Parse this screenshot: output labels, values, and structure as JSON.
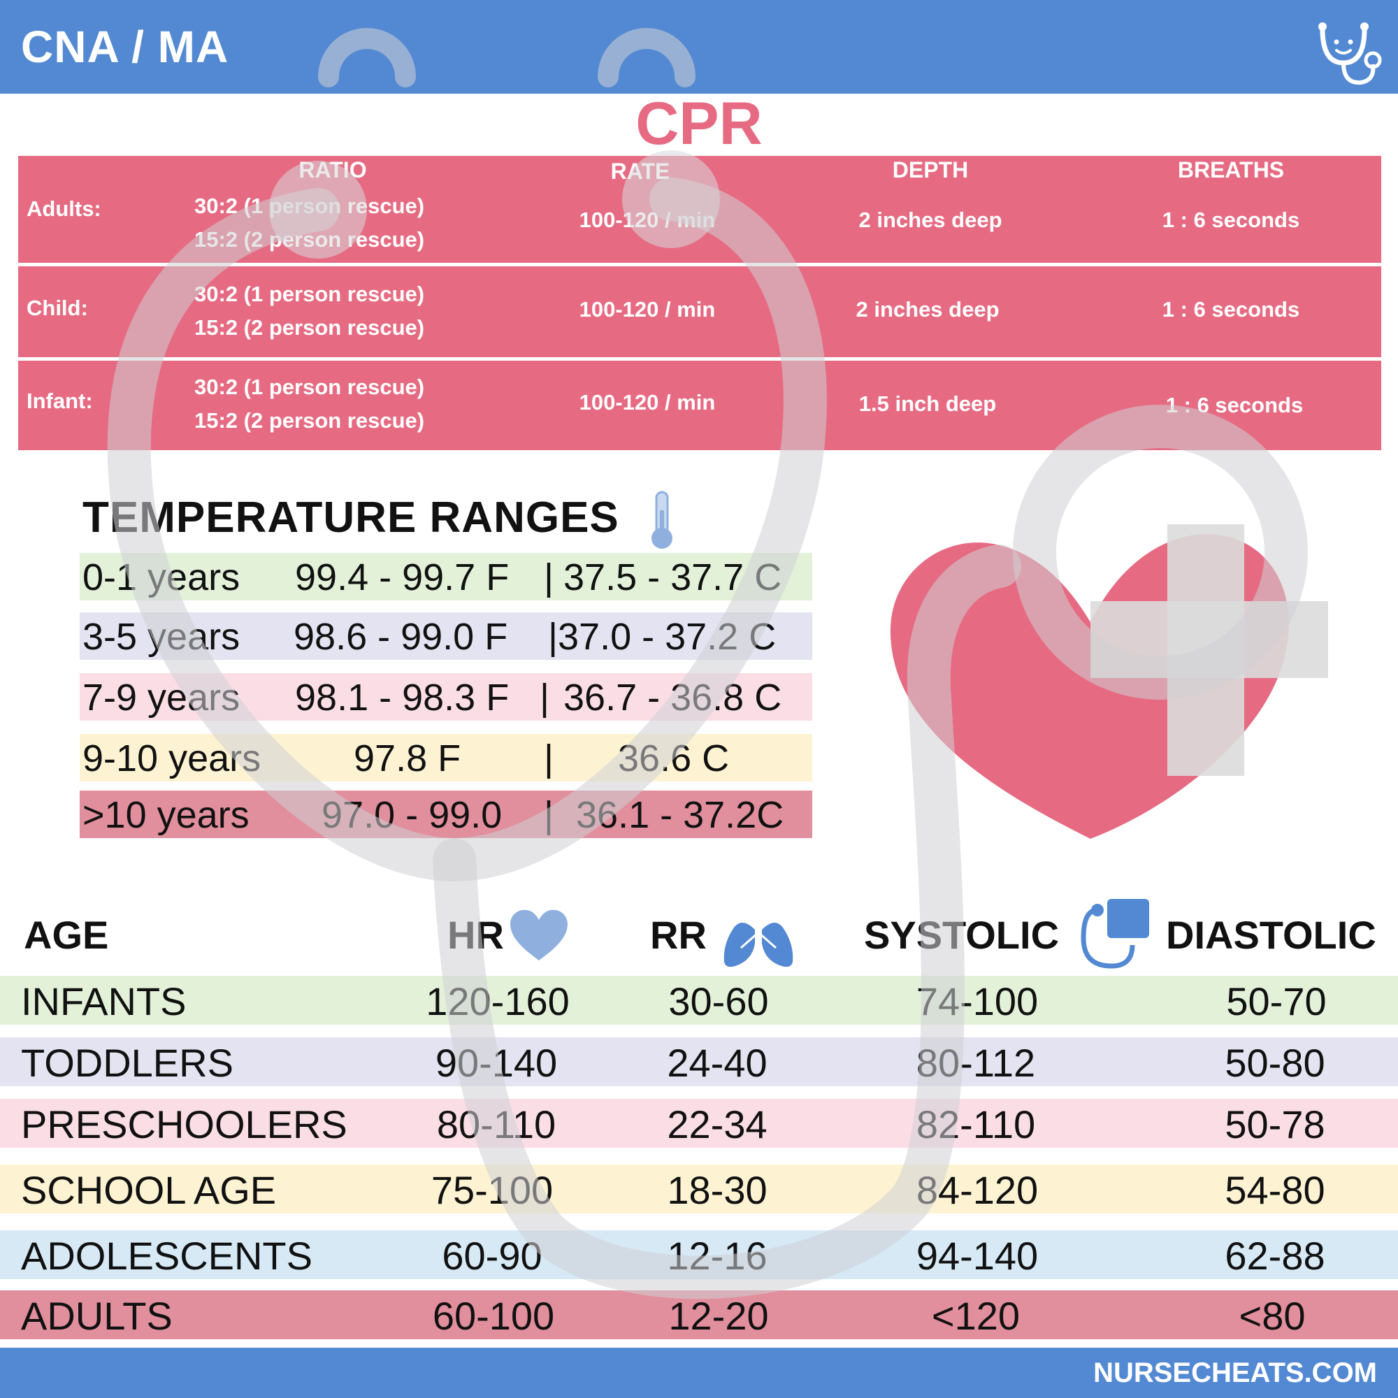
{
  "header": {
    "title": "CNA / MA",
    "logo_icon": "stethoscope-smile-icon"
  },
  "footer": {
    "site": "NURSECHEATS.COM"
  },
  "colors": {
    "brand_blue": "#5389d3",
    "cpr_red": "#e66b82",
    "green_row": "#e3f1d9",
    "lavender_row": "#e3e3f1",
    "pink_row": "#fbdde6",
    "yellow_row": "#fdf3d2",
    "blue_row": "#d6e9f5",
    "adult_row": "#e18e9d"
  },
  "cpr": {
    "title": "CPR",
    "headers": {
      "ratio": "RATIO",
      "rate": "RATE",
      "depth": "DEPTH",
      "breaths": "BREATHS"
    },
    "rows": [
      {
        "label": "Adults:",
        "ratio1": "30:2 (1 person rescue)",
        "ratio2": "15:2 (2 person rescue)",
        "rate": "100-120 / min",
        "depth": "2 inches deep",
        "breaths": "1 : 6 seconds"
      },
      {
        "label": "Child:",
        "ratio1": "30:2 (1 person rescue)",
        "ratio2": "15:2 (2 person rescue)",
        "rate": "100-120 / min",
        "depth": "2 inches deep",
        "breaths": "1 : 6 seconds"
      },
      {
        "label": "Infant:",
        "ratio1": "30:2 (1 person rescue)",
        "ratio2": "15:2 (2 person rescue)",
        "rate": "100-120 / min",
        "depth": "1.5 inch deep",
        "breaths": "1 : 6 seconds"
      }
    ]
  },
  "temperature": {
    "title": "TEMPERATURE RANGES",
    "icon": "thermometer-icon",
    "rows": [
      {
        "age": "0-1 years",
        "f": "99.4 - 99.7 F",
        "sep": "|",
        "c": "37.5 - 37.7 C",
        "color": "#e3f1d9"
      },
      {
        "age": "3-5 years",
        "f": "98.6 - 99.0 F",
        "sep": "|",
        "c": "37.0 - 37.2 C",
        "color": "#e3e3f1"
      },
      {
        "age": "7-9 years",
        "f": "98.1 - 98.3 F",
        "sep": "|",
        "c": "36.7 - 36.8 C",
        "color": "#fbdde6"
      },
      {
        "age": "9-10 years",
        "f": "97.8 F",
        "sep": "|",
        "c": "36.6 C",
        "color": "#fdf3d2"
      },
      {
        "age": ">10 years",
        "f": "97.0 - 99.0",
        "sep": "|",
        "c": "36.1 - 37.2C",
        "color": "#e18e9d"
      }
    ]
  },
  "vitals": {
    "headers": {
      "age": "AGE",
      "hr": "HR",
      "rr": "RR",
      "systolic": "SYSTOLIC",
      "diastolic": "DIASTOLIC"
    },
    "icons": {
      "hr": "heart-icon",
      "rr": "lungs-icon",
      "systolic": "blood-pressure-cuff-icon"
    },
    "rows": [
      {
        "age": "INFANTS",
        "hr": "120-160",
        "rr": "30-60",
        "systolic": "74-100",
        "diastolic": "50-70",
        "color": "#e3f1d9"
      },
      {
        "age": "TODDLERS",
        "hr": "90-140",
        "rr": "24-40",
        "systolic": "80-112",
        "diastolic": "50-80",
        "color": "#e3e3f1"
      },
      {
        "age": "PRESCHOOLERS",
        "hr": "80-110",
        "rr": "22-34",
        "systolic": "82-110",
        "diastolic": "50-78",
        "color": "#fbdde6"
      },
      {
        "age": "SCHOOL AGE",
        "hr": "75-100",
        "rr": "18-30",
        "systolic": "84-120",
        "diastolic": "54-80",
        "color": "#fdf3d2"
      },
      {
        "age": "ADOLESCENTS",
        "hr": "60-90",
        "rr": "12-16",
        "systolic": "94-140",
        "diastolic": "62-88",
        "color": "#d6e9f5"
      },
      {
        "age": "ADULTS",
        "hr": "60-100",
        "rr": "12-20",
        "systolic": "<120",
        "diastolic": "<80",
        "color": "#e18e9d"
      }
    ]
  },
  "decor": {
    "heart_icon": "heart-with-cross-icon",
    "watermark_icon": "stethoscope-watermark-icon"
  }
}
